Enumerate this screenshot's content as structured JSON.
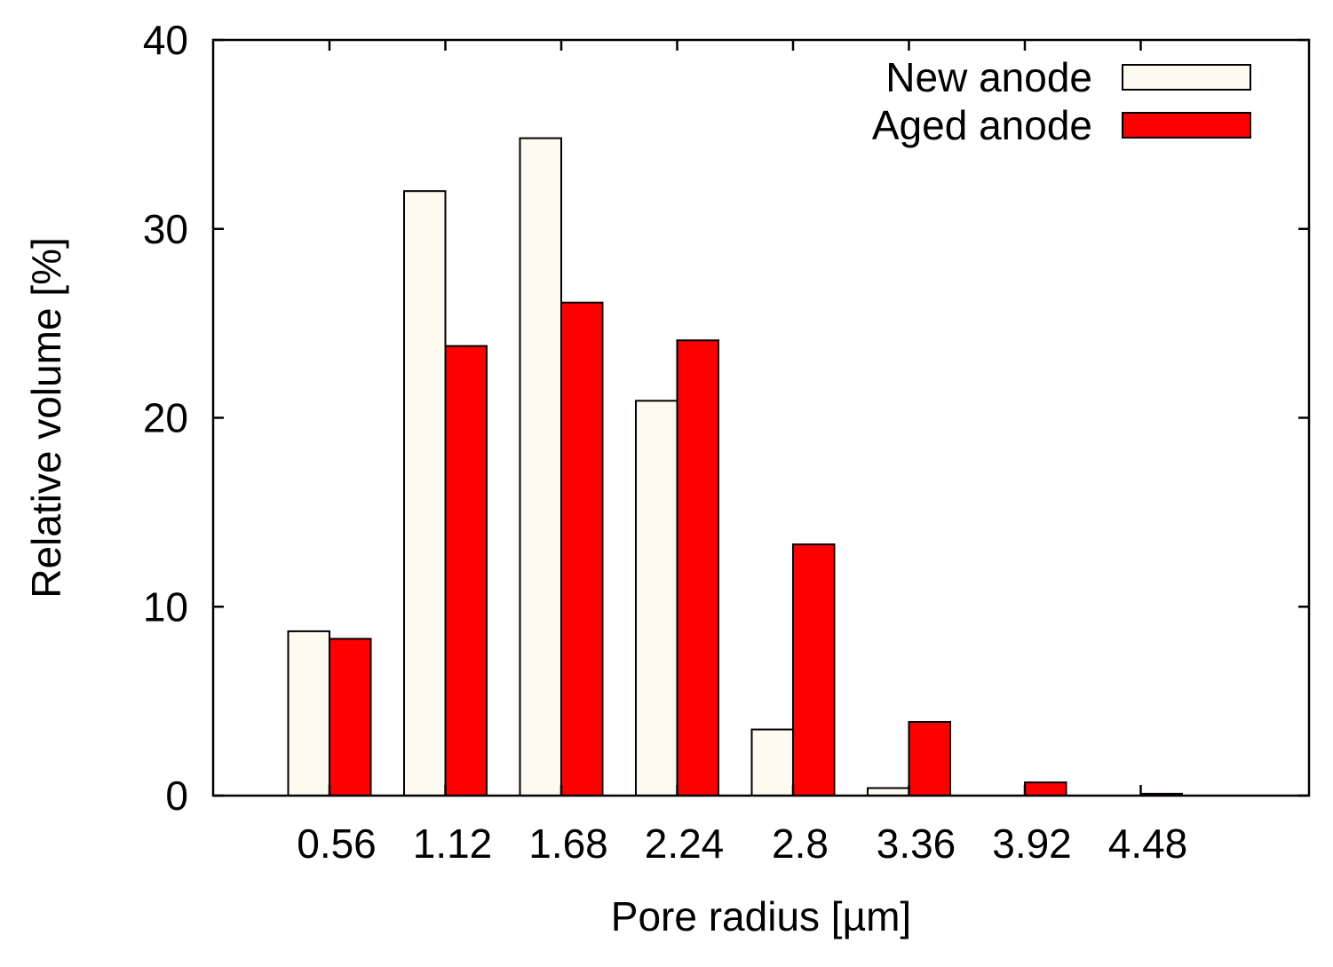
{
  "chart_data": {
    "type": "bar",
    "title": "",
    "xlabel": "Pore radius [µm]",
    "ylabel": "Relative volume [%]",
    "ylim": [
      0,
      40
    ],
    "yticks": [
      "0",
      "10",
      "20",
      "30",
      "40"
    ],
    "categories": [
      "0.56",
      "1.12",
      "1.68",
      "2.24",
      "2.8",
      "3.36",
      "3.92",
      "4.48"
    ],
    "grid": false,
    "legend_position": "top-right",
    "series": [
      {
        "name": "New anode",
        "color": "#fdfaf0",
        "values": [
          8.7,
          32.0,
          34.8,
          20.9,
          3.5,
          0.4,
          0.0,
          0.0
        ]
      },
      {
        "name": "Aged anode",
        "color": "#ff0000",
        "values": [
          8.3,
          23.8,
          26.1,
          24.1,
          13.3,
          3.9,
          0.7,
          0.1
        ]
      }
    ]
  }
}
